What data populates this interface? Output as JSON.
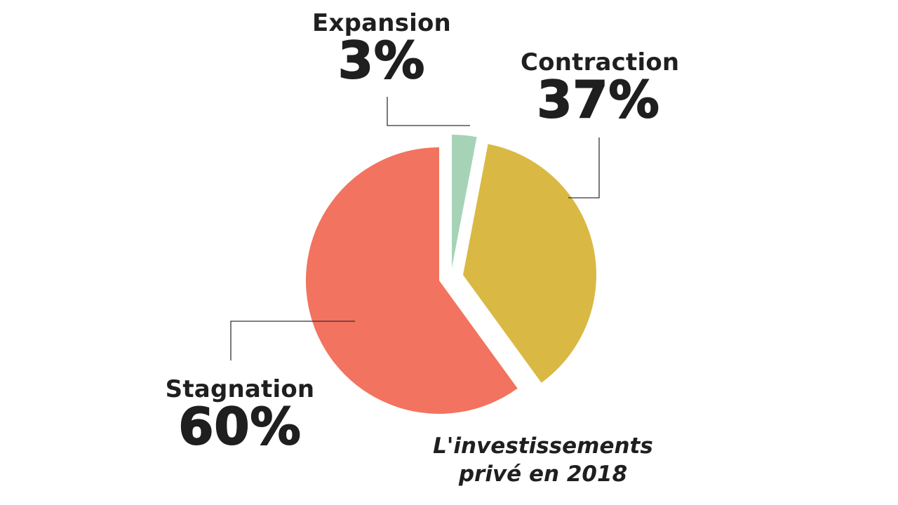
{
  "chart_data": {
    "type": "pie",
    "title": "",
    "slices": [
      {
        "label": "Expansion",
        "value": 3,
        "display": "3%",
        "color": "#a6d3b6"
      },
      {
        "label": "Contraction",
        "value": 37,
        "display": "37%",
        "color": "#d9b944"
      },
      {
        "label": "Stagnation",
        "value": 60,
        "display": "60%",
        "color": "#f2735f"
      }
    ],
    "exploded": true,
    "caption": {
      "line1": "L'investissements",
      "line2": "privé en 2018"
    }
  }
}
